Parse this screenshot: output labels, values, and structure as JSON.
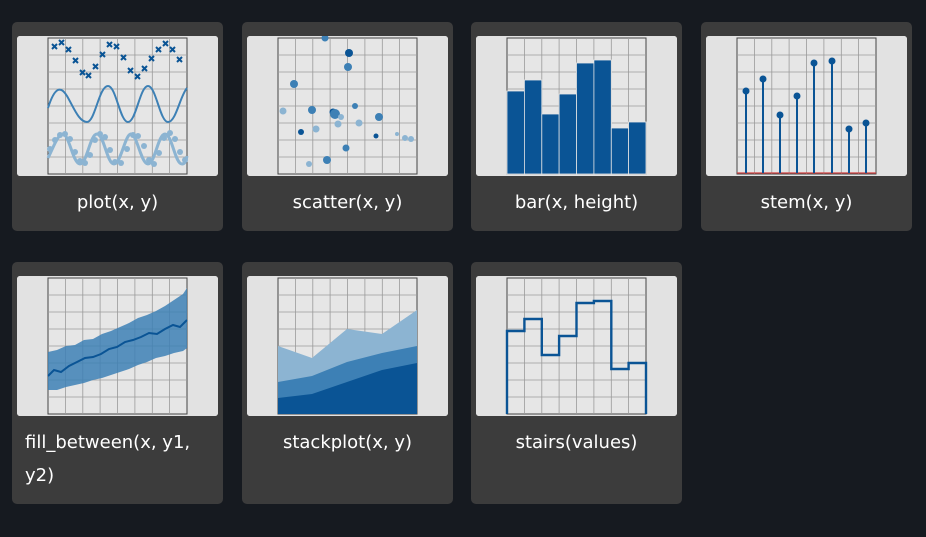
{
  "colors": {
    "page_background": "#161a20",
    "card_background": "#3c3c3c",
    "thumb_background": "#e2e2e2",
    "plot_background": "#e6e6e6",
    "grid": "#9a9a9a",
    "dark_blue": "#0a5495",
    "mid_blue": "#3d80b5",
    "light_blue": "#8cb4d2",
    "label_text": "#ffffff"
  },
  "cards": [
    {
      "label": "plot(x, y)",
      "icon": "line-plot-thumbnail"
    },
    {
      "label": "scatter(x, y)",
      "icon": "scatter-plot-thumbnail"
    },
    {
      "label": "bar(x, height)",
      "icon": "bar-chart-thumbnail"
    },
    {
      "label": "stem(x, y)",
      "icon": "stem-plot-thumbnail"
    },
    {
      "label": "fill_between(x, y1, y2)",
      "icon": "fill-between-thumbnail"
    },
    {
      "label": "stackplot(x, y)",
      "icon": "stackplot-thumbnail"
    },
    {
      "label": "stairs(values)",
      "icon": "stairs-plot-thumbnail"
    }
  ]
}
